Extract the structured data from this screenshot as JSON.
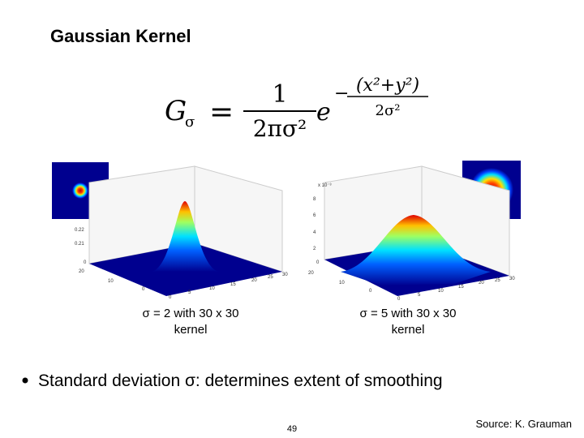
{
  "header": {
    "title": "Gaussian Kernel"
  },
  "formula": {
    "lhs": "G",
    "lhs_sub": "σ",
    "equals": "=",
    "numerator": "1",
    "denominator": "2πσ²",
    "base": "e",
    "exp_sign": "−",
    "exp_numerator": "(x²+y²)",
    "exp_denominator": "2σ²"
  },
  "plots": [
    {
      "caption": [
        "σ = 2 with 30 x 30",
        "kernel"
      ],
      "z_ticks": [
        "0",
        "0.21",
        "0.22"
      ],
      "x_ticks": [
        "20",
        "10",
        "0",
        "0",
        "5",
        "10",
        "15",
        "20",
        "25",
        "30"
      ]
    },
    {
      "caption": [
        "σ = 5 with 30 x 30",
        "kernel"
      ],
      "z_ticks": [
        "x 10⁻³",
        "8",
        "6",
        "4",
        "2",
        "0"
      ],
      "x_ticks": [
        "20",
        "10",
        "0",
        "0",
        "5",
        "10",
        "15",
        "20",
        "25",
        "30"
      ]
    }
  ],
  "bullet": "Standard deviation σ: determines extent of smoothing",
  "footer": {
    "page": "49",
    "source": "Source: K. Grauman"
  }
}
